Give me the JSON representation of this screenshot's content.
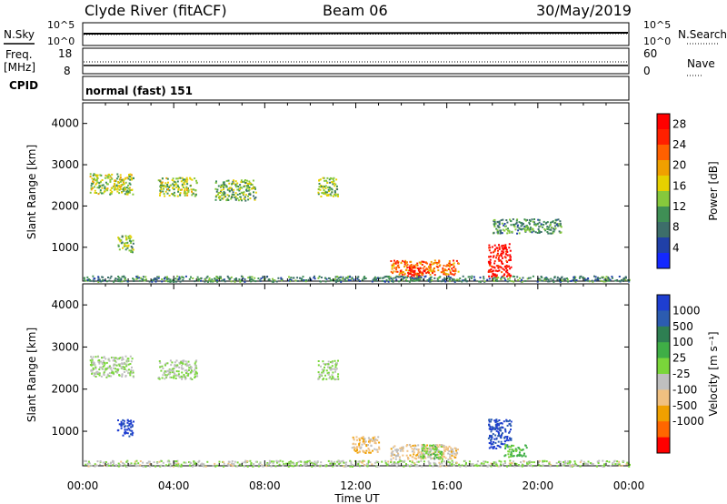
{
  "header": {
    "station": "Clyde River (fitACF)",
    "beam": "Beam 06",
    "date": "30/May/2019"
  },
  "top_panels": {
    "nsky_label": "N.Sky",
    "nsearch_label": "N.Search",
    "noise_ticks": [
      "10^5",
      "10^0"
    ],
    "freq_label_line1": "Freq.",
    "freq_label_line2": "[MHz]",
    "freq_ticks": [
      "18",
      "8"
    ],
    "nave_label": "Nave",
    "nave_ticks": [
      "60",
      "0"
    ],
    "cpid_label": "CPID",
    "cpid_text": "normal (fast) 151"
  },
  "x_axis": {
    "title": "Time UT",
    "ticks": [
      "00:00",
      "04:00",
      "08:00",
      "12:00",
      "16:00",
      "20:00",
      "00:00"
    ]
  },
  "chart_data": [
    {
      "type": "heatmap",
      "name": "power",
      "ylabel": "Slant Range [km]",
      "y_ticks": [
        "1000",
        "2000",
        "3000",
        "4000"
      ],
      "ylim": [
        180,
        4500
      ],
      "xlim_hours": [
        0,
        24
      ],
      "colorbar": {
        "title": "Power [dB]",
        "ticks": [
          "4",
          "8",
          "12",
          "16",
          "20",
          "24",
          "28"
        ],
        "colors": [
          "#1428ff",
          "#2040a8",
          "#3d6e6a",
          "#3f8f55",
          "#86c83c",
          "#e6d000",
          "#f0a000",
          "#ff6000",
          "#ff2000",
          "#ff0000"
        ],
        "range": [
          0,
          30
        ]
      },
      "regions": [
        {
          "t": [
            0.3,
            2.2
          ],
          "r": [
            2300,
            2800
          ],
          "level": 14
        },
        {
          "t": [
            1.5,
            2.2
          ],
          "r": [
            900,
            1300
          ],
          "level": 13
        },
        {
          "t": [
            3.3,
            5.0
          ],
          "r": [
            2250,
            2700
          ],
          "level": 14
        },
        {
          "t": [
            5.8,
            7.6
          ],
          "r": [
            2150,
            2650
          ],
          "level": 12
        },
        {
          "t": [
            10.3,
            11.2
          ],
          "r": [
            2250,
            2700
          ],
          "level": 13
        },
        {
          "t": [
            13.5,
            16.5
          ],
          "r": [
            350,
            700
          ],
          "level": 22
        },
        {
          "t": [
            14.2,
            15.0
          ],
          "r": [
            250,
            550
          ],
          "level": 28
        },
        {
          "t": [
            17.8,
            18.8
          ],
          "r": [
            300,
            1100
          ],
          "level": 28
        },
        {
          "t": [
            18.0,
            21.0
          ],
          "r": [
            1350,
            1700
          ],
          "level": 10
        },
        {
          "t": [
            0,
            24
          ],
          "r": [
            180,
            320
          ],
          "level": 9
        }
      ]
    },
    {
      "type": "heatmap",
      "name": "velocity",
      "ylabel": "Slant Range [km]",
      "y_ticks": [
        "1000",
        "2000",
        "3000",
        "4000"
      ],
      "ylim": [
        180,
        4500
      ],
      "xlim_hours": [
        0,
        24
      ],
      "colorbar": {
        "title": "Velocity [m s⁻¹]",
        "ticks": [
          "1000",
          "500",
          "100",
          "25",
          "-25",
          "-100",
          "-500",
          "-1000"
        ],
        "colors": [
          "#1e3ed0",
          "#2c5cb0",
          "#2e7f52",
          "#3fae46",
          "#7ad63a",
          "#bfbfbf",
          "#f0c080",
          "#f0a000",
          "#ff6600",
          "#ff0000"
        ],
        "range": [
          -1000,
          1000
        ]
      },
      "regions": [
        {
          "t": [
            0.3,
            2.2
          ],
          "r": [
            2300,
            2800
          ],
          "level": 0
        },
        {
          "t": [
            1.5,
            2.2
          ],
          "r": [
            900,
            1300
          ],
          "level": 900
        },
        {
          "t": [
            3.3,
            5.0
          ],
          "r": [
            2250,
            2700
          ],
          "level": 0
        },
        {
          "t": [
            10.3,
            11.2
          ],
          "r": [
            2250,
            2700
          ],
          "level": 0
        },
        {
          "t": [
            11.8,
            13.0
          ],
          "r": [
            500,
            900
          ],
          "level": -300
        },
        {
          "t": [
            13.5,
            16.5
          ],
          "r": [
            350,
            700
          ],
          "level": -250
        },
        {
          "t": [
            14.8,
            15.8
          ],
          "r": [
            350,
            700
          ],
          "level": 120
        },
        {
          "t": [
            17.8,
            18.8
          ],
          "r": [
            600,
            1300
          ],
          "level": 800
        },
        {
          "t": [
            18.5,
            19.5
          ],
          "r": [
            400,
            700
          ],
          "level": 200
        },
        {
          "t": [
            0,
            24
          ],
          "r": [
            180,
            320
          ],
          "level": -40
        }
      ]
    }
  ]
}
